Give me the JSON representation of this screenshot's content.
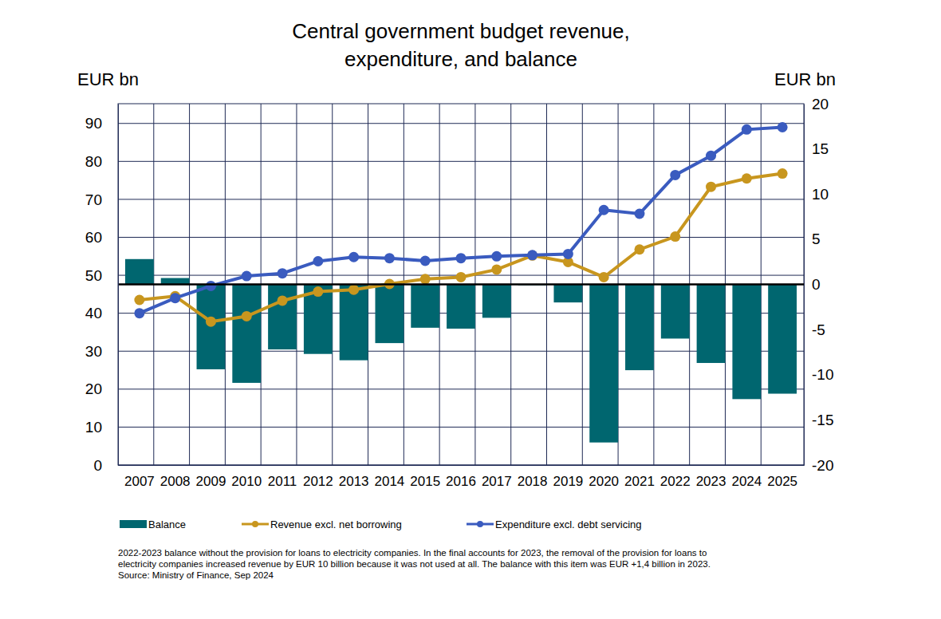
{
  "chart_data": {
    "type": "bar",
    "title": [
      "Central government budget revenue,",
      "expenditure, and balance"
    ],
    "y_label": "EUR bn",
    "y2_label": "EUR bn",
    "categories": [
      "2007",
      "2008",
      "2009",
      "2010",
      "2011",
      "2012",
      "2013",
      "2014",
      "2015",
      "2016",
      "2017",
      "2018",
      "2019",
      "2020",
      "2021",
      "2022",
      "2023",
      "2024",
      "2025"
    ],
    "series": [
      {
        "name": "Balance",
        "type": "bar",
        "axis": "y2",
        "color": "#00666f",
        "values": [
          2.8,
          0.7,
          -9.4,
          -10.9,
          -7.2,
          -7.7,
          -8.4,
          -6.5,
          -4.8,
          -4.9,
          -3.7,
          -0.1,
          -2.0,
          -17.5,
          -9.5,
          -6.0,
          -8.7,
          -12.7,
          -12.1
        ]
      },
      {
        "name": "Revenue excl. net borrowing",
        "type": "line",
        "axis": "y",
        "color": "#c8961e",
        "marker": "circle",
        "line_style": "solid",
        "values": [
          43.5,
          44.5,
          37.8,
          39.2,
          43.3,
          45.7,
          46.2,
          47.7,
          49.0,
          49.5,
          51.5,
          55.2,
          53.5,
          49.5,
          56.8,
          60.2,
          73.3,
          75.5,
          76.8
        ]
      },
      {
        "name": "Expenditure excl. debt servicing",
        "type": "line",
        "axis": "y",
        "color": "#3a5bbf",
        "marker": "circle",
        "line_style": "solid",
        "values": [
          40.0,
          44.0,
          47.2,
          49.8,
          50.5,
          53.7,
          54.8,
          54.5,
          53.8,
          54.5,
          55.0,
          55.3,
          55.6,
          67.2,
          66.2,
          76.4,
          81.5,
          88.4,
          89.0
        ]
      }
    ],
    "ylim": [
      0,
      95.2
    ],
    "yticks": [
      0,
      10,
      20,
      30,
      40,
      50,
      60,
      70,
      80,
      90
    ],
    "y2lim": [
      -20,
      20
    ],
    "y2ticks": [
      -20,
      -15,
      -10,
      -5,
      0,
      5,
      10,
      15,
      20
    ],
    "grid": true,
    "legend": "bottom",
    "notes": [
      "2022-2023 balance without the provision for loans to electricity companies. In the final accounts for 2023, the removal of the provision for loans to",
      "electricity companies increased revenue by EUR 10 billion because it was not used at all. The balance with this item was EUR +1,4 billion in 2023.",
      "Source: Ministry of Finance, Sep 2024"
    ]
  }
}
